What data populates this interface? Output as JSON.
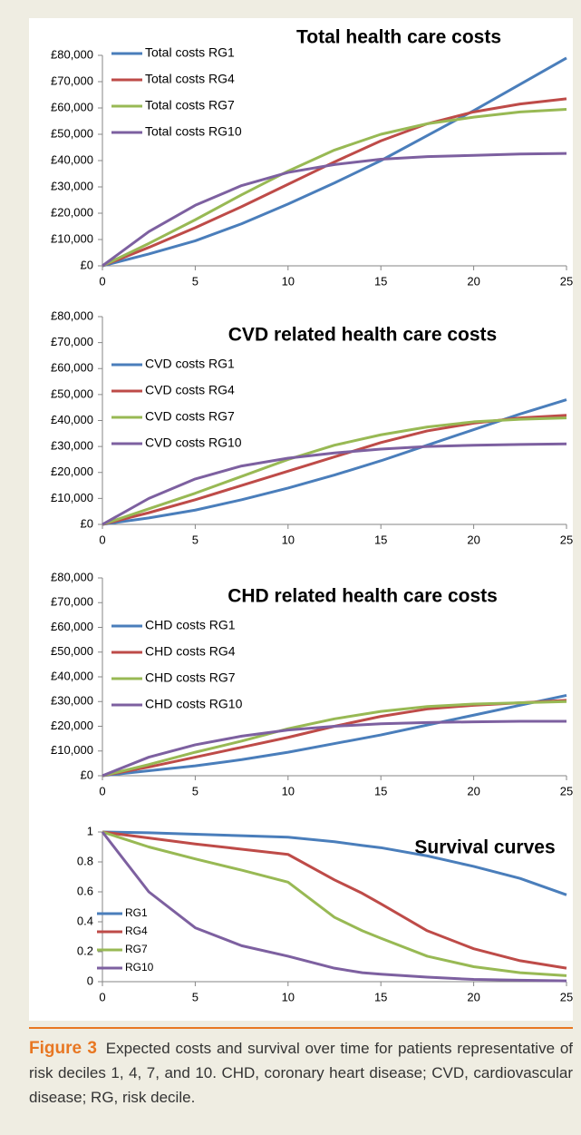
{
  "chart_data": [
    {
      "type": "line",
      "title": "Total health care costs",
      "x": [
        0,
        2.5,
        5,
        7.5,
        10,
        12.5,
        15,
        17.5,
        20,
        22.5,
        25
      ],
      "series": [
        {
          "name": "Total costs RG1",
          "color": "#4a7ebb",
          "values": [
            0,
            4500,
            9500,
            16000,
            23500,
            31500,
            40000,
            49500,
            59000,
            69000,
            79000
          ]
        },
        {
          "name": "Total costs RG4",
          "color": "#be4b48",
          "values": [
            0,
            7000,
            14500,
            22500,
            31000,
            39500,
            47500,
            54000,
            58500,
            61500,
            63500
          ]
        },
        {
          "name": "Total costs RG7",
          "color": "#98b954",
          "values": [
            0,
            8500,
            17500,
            27000,
            36000,
            44000,
            50000,
            54000,
            56500,
            58500,
            59500
          ]
        },
        {
          "name": "Total costs RG10",
          "color": "#7d60a0",
          "values": [
            0,
            13000,
            23000,
            30500,
            35500,
            38500,
            40500,
            41500,
            42000,
            42500,
            42700
          ]
        }
      ],
      "xlim": [
        0,
        25
      ],
      "xticks": [
        0,
        5,
        10,
        15,
        20,
        25
      ],
      "ylim": [
        0,
        80000
      ],
      "yticks": [
        {
          "value": 0,
          "label": "£0"
        },
        {
          "value": 10000,
          "label": "£10,000"
        },
        {
          "value": 20000,
          "label": "£20,000"
        },
        {
          "value": 30000,
          "label": "£30,000"
        },
        {
          "value": 40000,
          "label": "£40,000"
        },
        {
          "value": 50000,
          "label": "£50,000"
        },
        {
          "value": 60000,
          "label": "£60,000"
        },
        {
          "value": 70000,
          "label": "£70,000"
        },
        {
          "value": 80000,
          "label": "£80,000"
        }
      ],
      "legend": "upper left"
    },
    {
      "type": "line",
      "title": "CVD related health care costs",
      "x": [
        0,
        2.5,
        5,
        7.5,
        10,
        12.5,
        15,
        17.5,
        20,
        22.5,
        25
      ],
      "series": [
        {
          "name": "CVD costs RG1",
          "color": "#4a7ebb",
          "values": [
            0,
            2500,
            5500,
            9500,
            14000,
            19000,
            24500,
            30500,
            36500,
            42500,
            48000
          ]
        },
        {
          "name": "CVD costs RG4",
          "color": "#be4b48",
          "values": [
            0,
            4500,
            9500,
            15000,
            20500,
            26000,
            31500,
            36000,
            39000,
            41000,
            42000
          ]
        },
        {
          "name": "CVD costs RG7",
          "color": "#98b954",
          "values": [
            0,
            6000,
            12000,
            18500,
            25000,
            30500,
            34500,
            37500,
            39500,
            40500,
            41000
          ]
        },
        {
          "name": "CVD costs RG10",
          "color": "#7d60a0",
          "values": [
            0,
            10000,
            17500,
            22500,
            25500,
            27500,
            29000,
            30000,
            30500,
            30800,
            31000
          ]
        }
      ],
      "xlim": [
        0,
        25
      ],
      "xticks": [
        0,
        5,
        10,
        15,
        20,
        25
      ],
      "ylim": [
        0,
        80000
      ],
      "yticks": [
        {
          "value": 0,
          "label": "£0"
        },
        {
          "value": 10000,
          "label": "£10,000"
        },
        {
          "value": 20000,
          "label": "£20,000"
        },
        {
          "value": 30000,
          "label": "£30,000"
        },
        {
          "value": 40000,
          "label": "£40,000"
        },
        {
          "value": 50000,
          "label": "£50,000"
        },
        {
          "value": 60000,
          "label": "£60,000"
        },
        {
          "value": 70000,
          "label": "£70,000"
        },
        {
          "value": 80000,
          "label": "£80,000"
        }
      ],
      "legend": "upper left"
    },
    {
      "type": "line",
      "title": "CHD related health care costs",
      "x": [
        0,
        2.5,
        5,
        7.5,
        10,
        12.5,
        15,
        17.5,
        20,
        22.5,
        25
      ],
      "series": [
        {
          "name": "CHD costs RG1",
          "color": "#4a7ebb",
          "values": [
            0,
            2000,
            4000,
            6500,
            9500,
            13000,
            16500,
            20500,
            24500,
            28500,
            32500
          ]
        },
        {
          "name": "CHD costs RG4",
          "color": "#be4b48",
          "values": [
            0,
            3500,
            7500,
            11500,
            15500,
            20000,
            24000,
            27000,
            28500,
            29500,
            30500
          ]
        },
        {
          "name": "CHD costs RG7",
          "color": "#98b954",
          "values": [
            0,
            4500,
            9500,
            14000,
            19000,
            23000,
            26000,
            28000,
            29000,
            29500,
            30000
          ]
        },
        {
          "name": "CHD costs RG10",
          "color": "#7d60a0",
          "values": [
            0,
            7500,
            12500,
            16000,
            18500,
            20000,
            21000,
            21500,
            21800,
            22000,
            22000
          ]
        }
      ],
      "xlim": [
        0,
        25
      ],
      "xticks": [
        0,
        5,
        10,
        15,
        20,
        25
      ],
      "ylim": [
        0,
        80000
      ],
      "yticks": [
        {
          "value": 0,
          "label": "£0"
        },
        {
          "value": 10000,
          "label": "£10,000"
        },
        {
          "value": 20000,
          "label": "£20,000"
        },
        {
          "value": 30000,
          "label": "£30,000"
        },
        {
          "value": 40000,
          "label": "£40,000"
        },
        {
          "value": 50000,
          "label": "£50,000"
        },
        {
          "value": 60000,
          "label": "£60,000"
        },
        {
          "value": 70000,
          "label": "£70,000"
        },
        {
          "value": 80000,
          "label": "£80,000"
        }
      ],
      "legend": "upper left"
    },
    {
      "type": "line",
      "title": "Survival curves",
      "x": [
        0,
        2.5,
        5,
        7.5,
        10,
        12.5,
        14,
        15,
        17.5,
        20,
        22.5,
        25
      ],
      "series": [
        {
          "name": "RG1",
          "color": "#4a7ebb",
          "values": [
            1,
            0.995,
            0.985,
            0.975,
            0.965,
            0.935,
            0.91,
            0.895,
            0.84,
            0.77,
            0.69,
            0.58
          ]
        },
        {
          "name": "RG4",
          "color": "#be4b48",
          "values": [
            1,
            0.96,
            0.92,
            0.885,
            0.85,
            0.68,
            0.59,
            0.52,
            0.34,
            0.22,
            0.14,
            0.09
          ]
        },
        {
          "name": "RG7",
          "color": "#98b954",
          "values": [
            1,
            0.9,
            0.82,
            0.745,
            0.665,
            0.43,
            0.34,
            0.29,
            0.17,
            0.1,
            0.06,
            0.04
          ]
        },
        {
          "name": "RG10",
          "color": "#7d60a0",
          "values": [
            1,
            0.6,
            0.36,
            0.24,
            0.17,
            0.09,
            0.06,
            0.05,
            0.03,
            0.015,
            0.01,
            0.005
          ]
        }
      ],
      "xlim": [
        0,
        25
      ],
      "xticks": [
        0,
        5,
        10,
        15,
        20,
        25
      ],
      "ylim": [
        0,
        1
      ],
      "yticks": [
        0,
        0.2,
        0.4,
        0.6,
        0.8,
        1
      ],
      "legend": "lower left"
    }
  ],
  "caption": {
    "label": "Figure 3",
    "text": "Expected costs and survival over time for patients representative of risk deciles 1, 4, 7, and 10. CHD, coronary heart disease; CVD, cardiovascular disease; RG, risk decile."
  }
}
